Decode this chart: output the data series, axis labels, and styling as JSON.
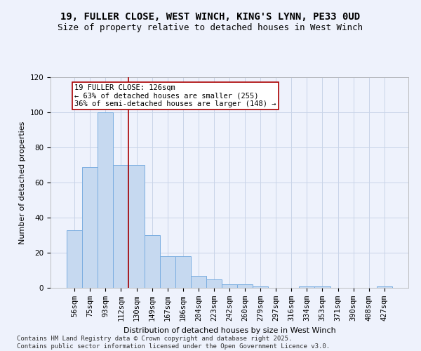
{
  "title_line1": "19, FULLER CLOSE, WEST WINCH, KING'S LYNN, PE33 0UD",
  "title_line2": "Size of property relative to detached houses in West Winch",
  "xlabel": "Distribution of detached houses by size in West Winch",
  "ylabel": "Number of detached properties",
  "categories": [
    "56sqm",
    "75sqm",
    "93sqm",
    "112sqm",
    "130sqm",
    "149sqm",
    "167sqm",
    "186sqm",
    "204sqm",
    "223sqm",
    "242sqm",
    "260sqm",
    "279sqm",
    "297sqm",
    "316sqm",
    "334sqm",
    "353sqm",
    "371sqm",
    "390sqm",
    "408sqm",
    "427sqm"
  ],
  "values": [
    33,
    69,
    100,
    70,
    70,
    30,
    18,
    18,
    7,
    5,
    2,
    2,
    1,
    0,
    0,
    1,
    1,
    0,
    0,
    0,
    1
  ],
  "bar_color": "#c6d9f0",
  "bar_edge_color": "#7aade0",
  "vline_x": 3.5,
  "vline_color": "#aa0000",
  "annotation_text": "19 FULLER CLOSE: 126sqm\n← 63% of detached houses are smaller (255)\n36% of semi-detached houses are larger (148) →",
  "annotation_box_color": "#ffffff",
  "annotation_box_edge": "#aa0000",
  "annotation_fontsize": 7.5,
  "title_fontsize1": 10,
  "title_fontsize2": 9,
  "xlabel_fontsize": 8,
  "ylabel_fontsize": 8,
  "tick_fontsize": 7.5,
  "footer_line1": "Contains HM Land Registry data © Crown copyright and database right 2025.",
  "footer_line2": "Contains public sector information licensed under the Open Government Licence v3.0.",
  "footer_fontsize": 6.5,
  "background_color": "#eef2fc",
  "plot_bg_color": "#eef2fc",
  "ylim": [
    0,
    120
  ],
  "yticks": [
    0,
    20,
    40,
    60,
    80,
    100,
    120
  ]
}
